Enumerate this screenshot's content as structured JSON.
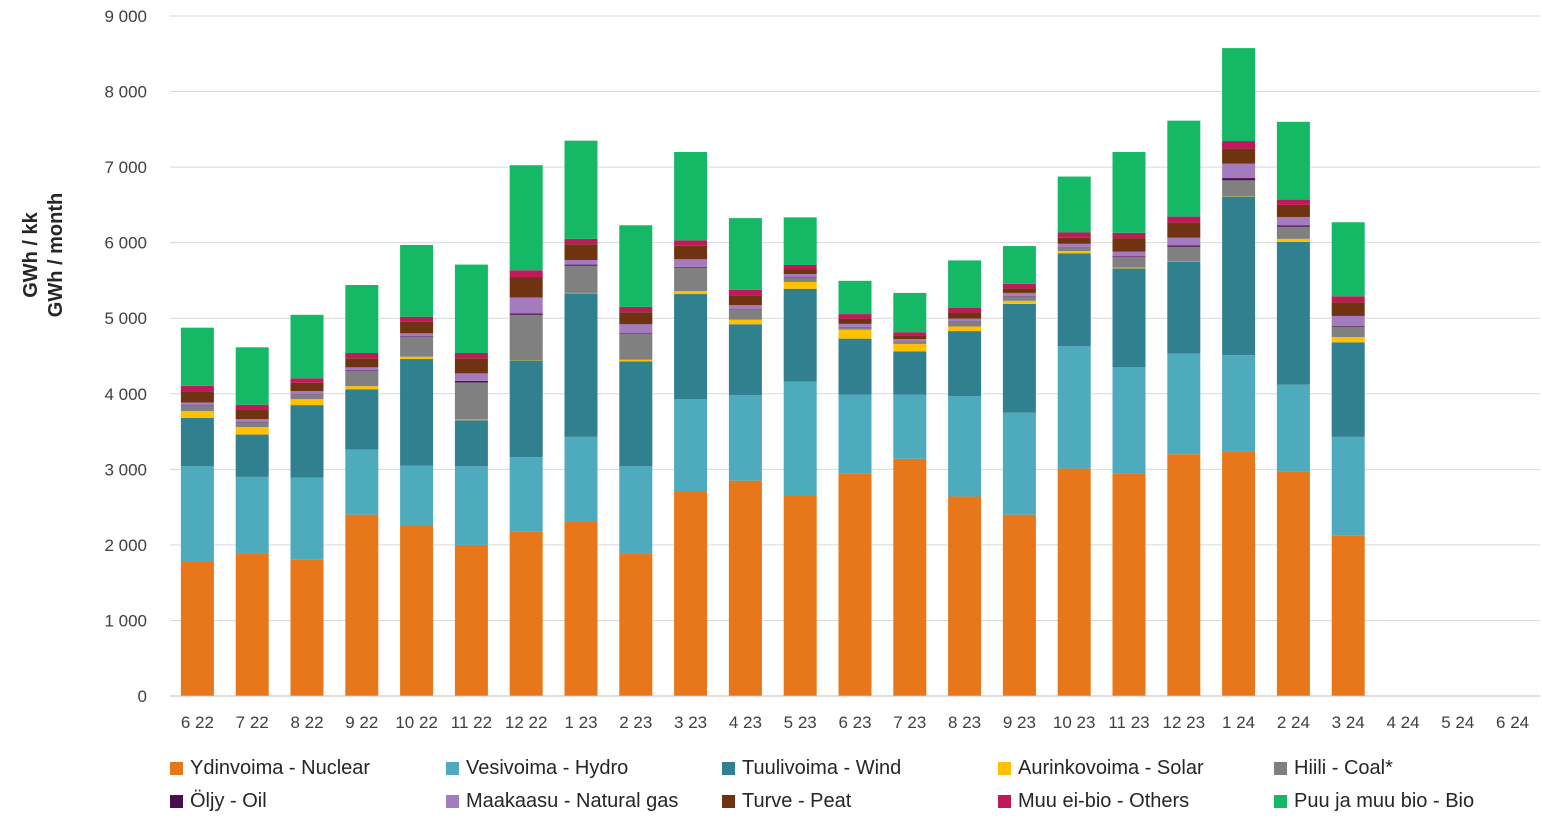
{
  "chart_data": {
    "type": "bar",
    "stacked": true,
    "ylabel_line1": "GWh / kk",
    "ylabel_line2": "GWh / month",
    "ylim": [
      0,
      9000
    ],
    "yticks": [
      0,
      1000,
      2000,
      3000,
      4000,
      5000,
      6000,
      7000,
      8000,
      9000
    ],
    "ytick_labels": [
      "0",
      "1 000",
      "2 000",
      "3 000",
      "4 000",
      "5 000",
      "6 000",
      "7 000",
      "8 000",
      "9 000"
    ],
    "grid": true,
    "legend_position": "bottom",
    "categories": [
      "6 22",
      "7 22",
      "8 22",
      "9 22",
      "10 22",
      "11 22",
      "12 22",
      "1 23",
      "2 23",
      "3 23",
      "4 23",
      "5 23",
      "6 23",
      "7 23",
      "8 23",
      "9 23",
      "10 23",
      "11 23",
      "12 23",
      "1 24",
      "2 24",
      "3 24",
      "4 24",
      "5 24",
      "6 24"
    ],
    "series": [
      {
        "name": "Ydinvoima - Nuclear",
        "color": "#e8761a",
        "values": [
          1780,
          1880,
          1810,
          2400,
          2250,
          2000,
          2180,
          2310,
          1880,
          2700,
          2850,
          2660,
          2940,
          3140,
          2640,
          2400,
          3010,
          2950,
          3200,
          3230,
          2970,
          2120,
          null,
          null,
          null
        ]
      },
      {
        "name": "Vesivoima - Hydro",
        "color": "#4eabbd",
        "values": [
          1260,
          1020,
          1080,
          860,
          800,
          1040,
          980,
          1120,
          1160,
          1230,
          1130,
          1500,
          1050,
          850,
          1330,
          1350,
          1620,
          1400,
          1330,
          1280,
          1150,
          1310,
          null,
          null,
          null
        ]
      },
      {
        "name": "Tuulivoima - Wind",
        "color": "#31808f",
        "values": [
          640,
          560,
          960,
          800,
          1410,
          610,
          1280,
          1900,
          1390,
          1390,
          940,
          1230,
          740,
          570,
          860,
          1440,
          1230,
          1310,
          1220,
          2100,
          1890,
          1250,
          null,
          null,
          null
        ]
      },
      {
        "name": "Aurinkovoima - Solar",
        "color": "#ffc000",
        "values": [
          90,
          100,
          80,
          40,
          30,
          10,
          5,
          5,
          20,
          40,
          60,
          90,
          120,
          100,
          60,
          40,
          30,
          10,
          5,
          5,
          40,
          70,
          null,
          null,
          null
        ]
      },
      {
        "name": "Hiili - Coal*",
        "color": "#808080",
        "values": [
          70,
          60,
          60,
          200,
          260,
          490,
          600,
          360,
          340,
          310,
          130,
          60,
          30,
          30,
          70,
          60,
          50,
          140,
          190,
          210,
          160,
          140,
          null,
          null,
          null
        ]
      },
      {
        "name": "Öljy - Oil",
        "color": "#4b0f4f",
        "values": [
          5,
          5,
          5,
          10,
          10,
          20,
          20,
          15,
          10,
          10,
          5,
          5,
          5,
          5,
          5,
          5,
          5,
          10,
          20,
          30,
          20,
          10,
          null,
          null,
          null
        ]
      },
      {
        "name": "Maakaasu - Natural gas",
        "color": "#a57bc0",
        "values": [
          40,
          40,
          40,
          40,
          40,
          100,
          210,
          60,
          120,
          100,
          60,
          40,
          40,
          30,
          30,
          40,
          40,
          60,
          100,
          190,
          110,
          130,
          null,
          null,
          null
        ]
      },
      {
        "name": "Turve - Peat",
        "color": "#703311",
        "values": [
          150,
          120,
          110,
          120,
          160,
          200,
          270,
          210,
          160,
          180,
          130,
          60,
          70,
          40,
          80,
          60,
          80,
          180,
          200,
          200,
          160,
          180,
          null,
          null,
          null
        ]
      },
      {
        "name": "Muu ei-bio - Others",
        "color": "#c0185a",
        "values": [
          70,
          70,
          60,
          70,
          60,
          70,
          90,
          70,
          70,
          70,
          70,
          60,
          60,
          50,
          60,
          60,
          70,
          70,
          80,
          100,
          70,
          80,
          null,
          null,
          null
        ]
      },
      {
        "name": "Puu ja muu bio - Bio",
        "color": "#15b864",
        "values": [
          770,
          760,
          840,
          900,
          950,
          1170,
          1390,
          1300,
          1080,
          1170,
          950,
          630,
          440,
          520,
          630,
          500,
          740,
          1070,
          1270,
          1230,
          1030,
          980,
          null,
          null,
          null
        ]
      }
    ]
  }
}
